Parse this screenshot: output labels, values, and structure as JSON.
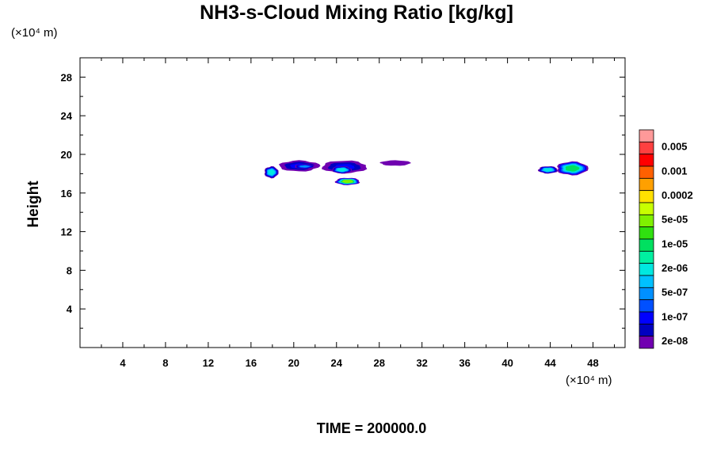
{
  "chart_data": {
    "type": "heatmap",
    "title": "NH3-s-Cloud Mixing Ratio [kg/kg]",
    "xlabel": "",
    "ylabel": "Height",
    "x_unit": "(×10⁴ m)",
    "y_unit": "(×10⁴ m)",
    "x_range": [
      0,
      51
    ],
    "y_range": [
      0,
      30
    ],
    "x_ticks": [
      4,
      8,
      12,
      16,
      20,
      24,
      28,
      32,
      36,
      40,
      44,
      48
    ],
    "y_ticks": [
      4,
      8,
      12,
      16,
      20,
      24,
      28
    ],
    "grid": false,
    "colorbar": {
      "labels": [
        "0.005",
        "0.001",
        "0.0002",
        "5e-05",
        "1e-05",
        "2e-06",
        "5e-07",
        "1e-07",
        "2e-08"
      ],
      "colors": [
        "#ff9999",
        "#ff4040",
        "#ff0000",
        "#ff6000",
        "#ffa000",
        "#ffe000",
        "#c8ff00",
        "#80f000",
        "#30e010",
        "#00e060",
        "#00f0a0",
        "#00e8e0",
        "#00c0ff",
        "#0090ff",
        "#0050ff",
        "#0000ff",
        "#0000c0",
        "#7000b0"
      ]
    },
    "cloud_patches": [
      {
        "x": [
          17.2,
          18.6
        ],
        "y": [
          17.5,
          18.8
        ],
        "level": "2e-06"
      },
      {
        "x": [
          18.5,
          22.5
        ],
        "y": [
          18.2,
          19.4
        ],
        "level": "1e-07"
      },
      {
        "x": [
          20.0,
          22.0
        ],
        "y": [
          18.5,
          19.0
        ],
        "level": "5e-07"
      },
      {
        "x": [
          22.5,
          27.0
        ],
        "y": [
          18.0,
          19.4
        ],
        "level": "1e-07"
      },
      {
        "x": [
          23.5,
          25.5
        ],
        "y": [
          18.0,
          18.8
        ],
        "level": "2e-06"
      },
      {
        "x": [
          23.8,
          26.3
        ],
        "y": [
          16.8,
          17.6
        ],
        "level": "5e-05"
      },
      {
        "x": [
          28.0,
          31.0
        ],
        "y": [
          18.8,
          19.4
        ],
        "level": "2e-08"
      },
      {
        "x": [
          42.8,
          44.8
        ],
        "y": [
          18.0,
          18.8
        ],
        "level": "2e-06"
      },
      {
        "x": [
          44.5,
          47.6
        ],
        "y": [
          17.8,
          19.3
        ],
        "level": "1e-05"
      }
    ],
    "time_label": "TIME = 200000.0"
  }
}
